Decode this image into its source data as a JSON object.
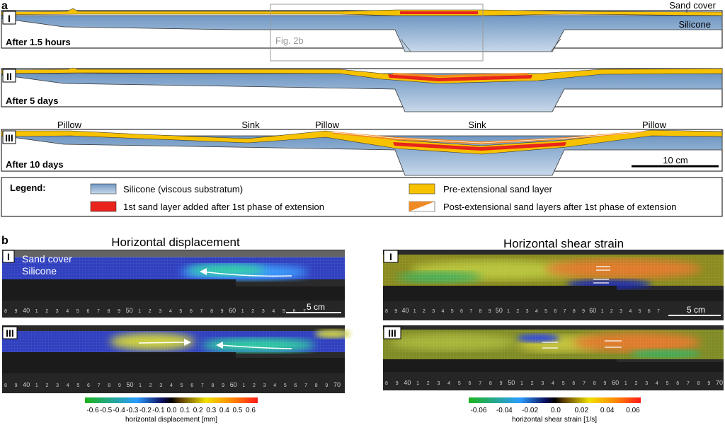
{
  "panel_a": {
    "label": "a",
    "annotations": {
      "sand_cover": "Sand cover",
      "silicone": "Silicone",
      "fig2b": "Fig. 2b"
    },
    "stages": [
      {
        "roman": "I",
        "time": "After 1.5 hours"
      },
      {
        "roman": "II",
        "time": "After 5 days"
      },
      {
        "roman": "III",
        "time": "After 10 days"
      }
    ],
    "stage3_labels": {
      "pillow_left": "Pillow",
      "sink_left": "Sink",
      "pillow_mid": "Pillow",
      "sink_center": "Sink",
      "pillow_right": "Pillow"
    },
    "scale_bar": "10 cm"
  },
  "legend": {
    "title": "Legend:",
    "items": [
      {
        "text": "Silicone (viscous substratum)",
        "color": "#8fb1d4"
      },
      {
        "text": "1st sand layer added after 1st phase of extension",
        "color": "#e8241c"
      },
      {
        "text": "Pre-extensional sand layer",
        "color": "#f7c200"
      },
      {
        "text": "Post-extensional sand layers after 1st phase of extension",
        "color": "#f08a24"
      }
    ]
  },
  "panel_b": {
    "label": "b",
    "left_title": "Horizontal displacement",
    "right_title": "Horizontal shear strain",
    "row_labels": [
      "I",
      "III"
    ],
    "in_panel_labels": {
      "sand_cover": "Sand cover",
      "silicone": "Silicone"
    },
    "scale_label": "5 cm",
    "ruler_left_top": [
      "8",
      "9",
      "40",
      "1",
      "2",
      "3",
      "4",
      "5",
      "6",
      "7",
      "8",
      "9",
      "50",
      "1",
      "2",
      "3",
      "4",
      "5",
      "6",
      "7",
      "8",
      "9",
      "60",
      "1",
      "2",
      "3",
      "4",
      "5",
      "6",
      "7"
    ],
    "ruler_left_bottom": [
      "8",
      "9",
      "40",
      "1",
      "2",
      "3",
      "4",
      "5",
      "6",
      "7",
      "8",
      "9",
      "50",
      "1",
      "2",
      "3",
      "4",
      "5",
      "6",
      "7",
      "8",
      "9",
      "60",
      "1",
      "2",
      "3",
      "4",
      "5",
      "6",
      "7",
      "8",
      "9",
      "70"
    ],
    "colorbar_left": {
      "ticks": [
        "-0.6",
        "-0.5",
        "-0.4",
        "-0.3",
        "-0.2",
        "-0.1",
        "0.0",
        "0.1",
        "0.2",
        "0.3",
        "0.4",
        "0.5",
        "0.6"
      ],
      "label": "horizontal displacement [mm]"
    },
    "colorbar_right": {
      "ticks": [
        "-0.06",
        "-0.04",
        "-0.02",
        "0.0",
        "0.02",
        "0.04",
        "0.06"
      ],
      "label": "horizontal shear strain [1/s]"
    }
  }
}
